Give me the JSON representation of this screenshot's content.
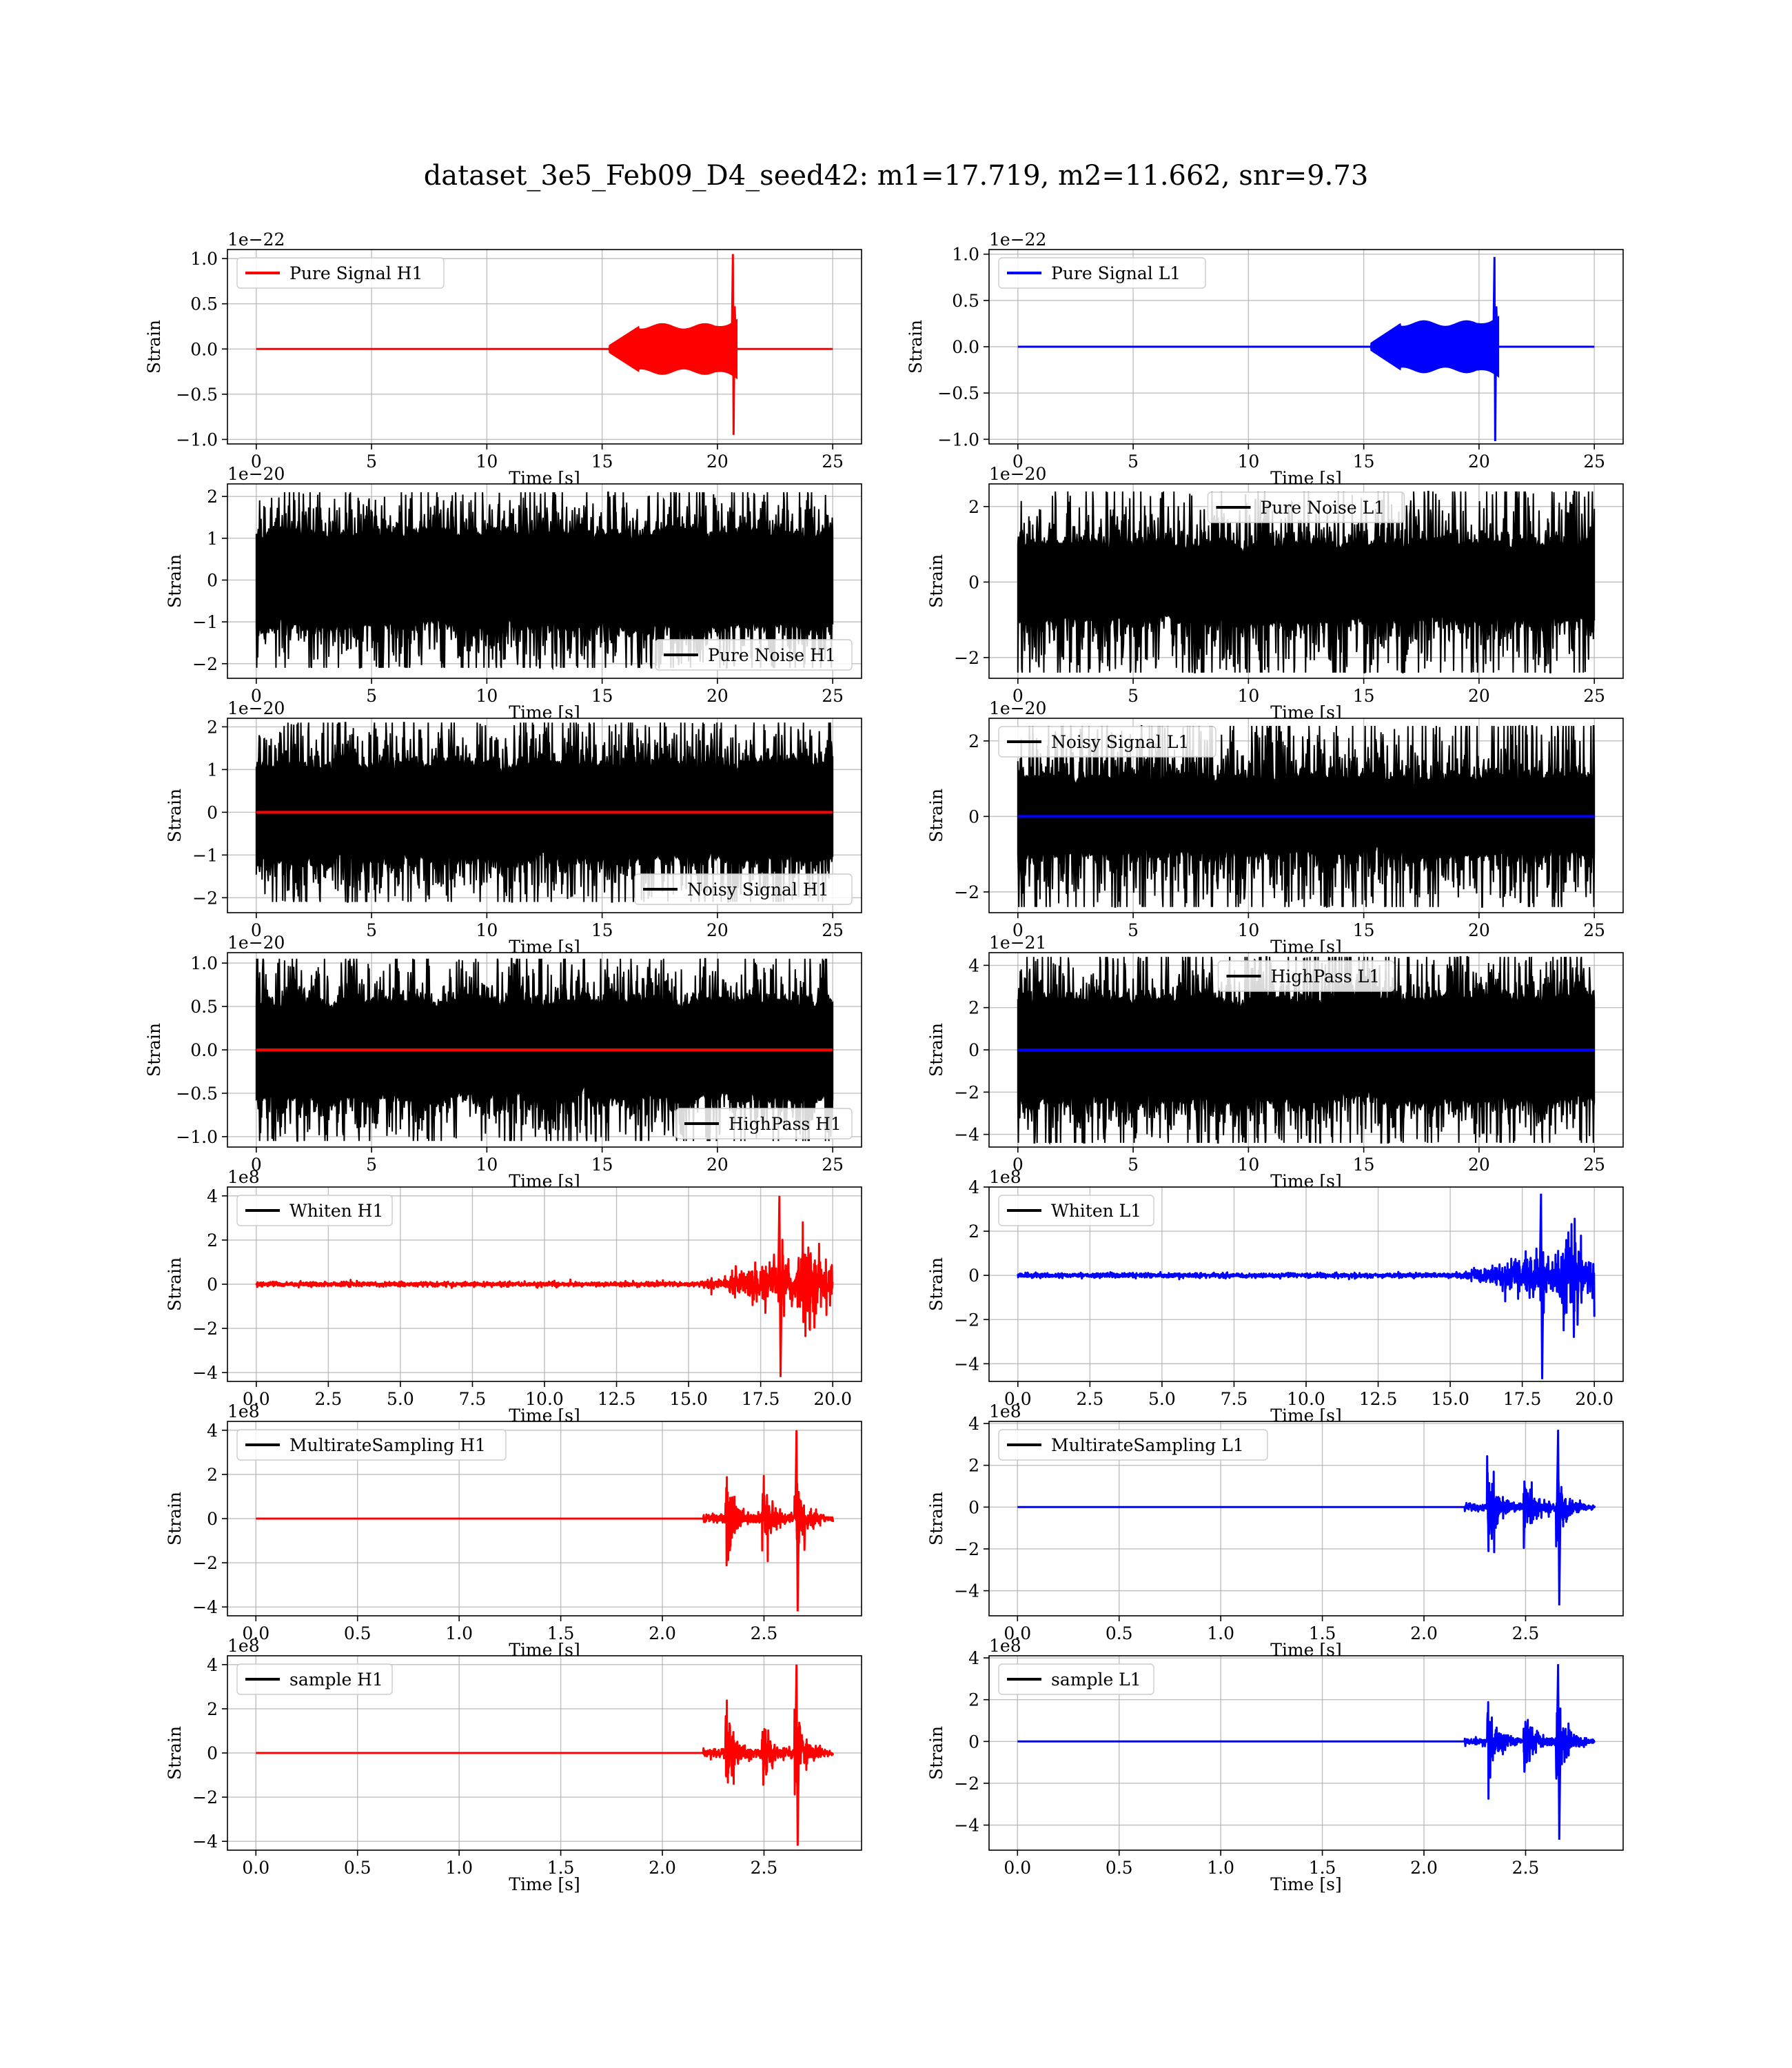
{
  "figure": {
    "title": "dataset_3e5_Feb09_D4_seed42: m1=17.719, m2=11.662, snr=9.73"
  },
  "colors": {
    "h1_signal": "#ff0000",
    "l1_signal": "#0000ff",
    "noise": "#000000",
    "grid": "#b0b0b0",
    "frame": "#000000",
    "background": "#ffffff"
  },
  "chart_data": [
    {
      "id": "pure-signal-h1",
      "type": "line",
      "xlabel": "Time [s]",
      "ylabel": "Strain",
      "offset_label": "1e−22",
      "xlim": [
        -1.25,
        26.25
      ],
      "ylim": [
        -1.05,
        1.1
      ],
      "xticks": [
        0,
        5,
        10,
        15,
        20,
        25
      ],
      "xtick_labels": [
        "0",
        "5",
        "10",
        "15",
        "20",
        "25"
      ],
      "yticks": [
        -1.0,
        -0.5,
        0.0,
        0.5,
        1.0
      ],
      "ytick_labels": [
        "−1.0",
        "−0.5",
        "0.0",
        "0.5",
        "1.0"
      ],
      "grid": true,
      "legend_placement": "upper left",
      "series": [
        {
          "name": "Pure Signal H1",
          "color": "#ff0000",
          "kind": "chirp",
          "duration": 25,
          "merger": 20.7,
          "onset": 15.3,
          "envelope": 0.25,
          "peak": 1.05,
          "trough": -0.95
        }
      ]
    },
    {
      "id": "pure-signal-l1",
      "type": "line",
      "xlabel": "Time [s]",
      "ylabel": "Strain",
      "offset_label": "1e−22",
      "xlim": [
        -1.25,
        26.25
      ],
      "ylim": [
        -1.05,
        1.05
      ],
      "xticks": [
        0,
        5,
        10,
        15,
        20,
        25
      ],
      "xtick_labels": [
        "0",
        "5",
        "10",
        "15",
        "20",
        "25"
      ],
      "yticks": [
        -1.0,
        -0.5,
        0.0,
        0.5,
        1.0
      ],
      "ytick_labels": [
        "−1.0",
        "−0.5",
        "0.0",
        "0.5",
        "1.0"
      ],
      "grid": true,
      "legend_placement": "upper left",
      "series": [
        {
          "name": "Pure Signal L1",
          "color": "#0000ff",
          "kind": "chirp",
          "duration": 25,
          "merger": 20.7,
          "onset": 15.3,
          "envelope": 0.25,
          "peak": 0.97,
          "trough": -1.02
        }
      ]
    },
    {
      "id": "pure-noise-h1",
      "type": "line",
      "xlabel": "Time [s]",
      "ylabel": "Strain",
      "offset_label": "1e−20",
      "xlim": [
        -1.25,
        26.25
      ],
      "ylim": [
        -2.35,
        2.3
      ],
      "xticks": [
        0,
        5,
        10,
        15,
        20,
        25
      ],
      "xtick_labels": [
        "0",
        "5",
        "10",
        "15",
        "20",
        "25"
      ],
      "yticks": [
        -2,
        -1,
        0,
        1,
        2
      ],
      "ytick_labels": [
        "−2",
        "−1",
        "0",
        "1",
        "2"
      ],
      "grid": true,
      "legend_placement": "lower right",
      "series": [
        {
          "name": "Pure Noise H1",
          "color": "#000000",
          "kind": "noise",
          "duration": 25,
          "band": 1.1,
          "peak": 2.1
        }
      ]
    },
    {
      "id": "pure-noise-l1",
      "type": "line",
      "xlabel": "Time [s]",
      "ylabel": "Strain",
      "offset_label": "1e−20",
      "xlim": [
        -1.25,
        26.25
      ],
      "ylim": [
        -2.55,
        2.6
      ],
      "xticks": [
        0,
        5,
        10,
        15,
        20,
        25
      ],
      "xtick_labels": [
        "0",
        "5",
        "10",
        "15",
        "20",
        "25"
      ],
      "yticks": [
        -2,
        0,
        2
      ],
      "ytick_labels": [
        "−2",
        "0",
        "2"
      ],
      "grid": true,
      "legend_placement": "upper center",
      "series": [
        {
          "name": "Pure Noise L1",
          "color": "#000000",
          "kind": "noise",
          "duration": 25,
          "band": 1.0,
          "peak": 2.4
        }
      ]
    },
    {
      "id": "noisy-signal-h1",
      "type": "line",
      "xlabel": "Time [s]",
      "ylabel": "Strain",
      "offset_label": "1e−20",
      "xlim": [
        -1.25,
        26.25
      ],
      "ylim": [
        -2.35,
        2.2
      ],
      "xticks": [
        0,
        5,
        10,
        15,
        20,
        25
      ],
      "xtick_labels": [
        "0",
        "5",
        "10",
        "15",
        "20",
        "25"
      ],
      "yticks": [
        -2,
        -1,
        0,
        1,
        2
      ],
      "ytick_labels": [
        "−2",
        "−1",
        "0",
        "1",
        "2"
      ],
      "grid": true,
      "legend_placement": "lower right",
      "series": [
        {
          "name": "Noisy Signal H1",
          "color": "#000000",
          "kind": "noise",
          "duration": 25,
          "band": 1.1,
          "peak": 2.1
        },
        {
          "color": "#ff0000",
          "kind": "flat",
          "duration": 25
        }
      ]
    },
    {
      "id": "noisy-signal-l1",
      "type": "line",
      "xlabel": "Time [s]",
      "ylabel": "Strain",
      "offset_label": "1e−20",
      "xlim": [
        -1.25,
        26.25
      ],
      "ylim": [
        -2.55,
        2.6
      ],
      "xticks": [
        0,
        5,
        10,
        15,
        20,
        25
      ],
      "xtick_labels": [
        "0",
        "5",
        "10",
        "15",
        "20",
        "25"
      ],
      "yticks": [
        -2,
        0,
        2
      ],
      "ytick_labels": [
        "−2",
        "0",
        "2"
      ],
      "grid": true,
      "legend_placement": "upper left",
      "series": [
        {
          "name": "Noisy Signal L1",
          "color": "#000000",
          "kind": "noise",
          "duration": 25,
          "band": 1.0,
          "peak": 2.4
        },
        {
          "color": "#0000ff",
          "kind": "flat",
          "duration": 25
        }
      ]
    },
    {
      "id": "highpass-h1",
      "type": "line",
      "xlabel": "Time [s]",
      "ylabel": "Strain",
      "offset_label": "1e−20",
      "xlim": [
        -1.25,
        26.25
      ],
      "ylim": [
        -1.12,
        1.12
      ],
      "xticks": [
        0,
        5,
        10,
        15,
        20,
        25
      ],
      "xtick_labels": [
        "0",
        "5",
        "10",
        "15",
        "20",
        "25"
      ],
      "yticks": [
        -1.0,
        -0.5,
        0.0,
        0.5,
        1.0
      ],
      "ytick_labels": [
        "−1.0",
        "−0.5",
        "0.0",
        "0.5",
        "1.0"
      ],
      "grid": true,
      "legend_placement": "lower right",
      "series": [
        {
          "name": "HighPass H1",
          "color": "#000000",
          "kind": "noise",
          "duration": 25,
          "band": 0.55,
          "peak": 1.05
        },
        {
          "color": "#ff0000",
          "kind": "flat",
          "duration": 25
        }
      ]
    },
    {
      "id": "highpass-l1",
      "type": "line",
      "xlabel": "Time [s]",
      "ylabel": "Strain",
      "offset_label": "1e−21",
      "xlim": [
        -1.25,
        26.25
      ],
      "ylim": [
        -4.6,
        4.6
      ],
      "xticks": [
        0,
        5,
        10,
        15,
        20,
        25
      ],
      "xtick_labels": [
        "0",
        "5",
        "10",
        "15",
        "20",
        "25"
      ],
      "yticks": [
        -4,
        -2,
        0,
        2,
        4
      ],
      "ytick_labels": [
        "−4",
        "−2",
        "0",
        "2",
        "4"
      ],
      "grid": true,
      "legend_placement": "upper center",
      "series": [
        {
          "name": "HighPass L1",
          "color": "#000000",
          "kind": "noise",
          "duration": 25,
          "band": 2.4,
          "peak": 4.4
        },
        {
          "color": "#0000ff",
          "kind": "flat",
          "duration": 25
        }
      ]
    },
    {
      "id": "whiten-h1",
      "type": "line",
      "xlabel": "Time [s]",
      "ylabel": "Strain",
      "offset_label": "1e8",
      "xlim": [
        -1.0,
        21.0
      ],
      "ylim": [
        -4.4,
        4.4
      ],
      "xticks": [
        0,
        2.5,
        5,
        7.5,
        10,
        12.5,
        15,
        17.5,
        20
      ],
      "xtick_labels": [
        "0.0",
        "2.5",
        "5.0",
        "7.5",
        "10.0",
        "12.5",
        "15.0",
        "17.5",
        "20.0"
      ],
      "yticks": [
        -4,
        -2,
        0,
        2,
        4
      ],
      "ytick_labels": [
        "−4",
        "−2",
        "0",
        "2",
        "4"
      ],
      "grid": true,
      "legend_placement": "upper left",
      "series": [
        {
          "name": "Whiten H1",
          "color": "#ff0000",
          "kind": "whiten",
          "duration": 20,
          "peak": 4.0,
          "trough": -4.2,
          "spike_at": 18.15
        }
      ]
    },
    {
      "id": "whiten-l1",
      "type": "line",
      "xlabel": "Time [s]",
      "ylabel": "Strain",
      "offset_label": "1e8",
      "xlim": [
        -1.0,
        21.0
      ],
      "ylim": [
        -4.8,
        4.0
      ],
      "xticks": [
        0,
        2.5,
        5,
        7.5,
        10,
        12.5,
        15,
        17.5,
        20
      ],
      "xtick_labels": [
        "0.0",
        "2.5",
        "5.0",
        "7.5",
        "10.0",
        "12.5",
        "15.0",
        "17.5",
        "20.0"
      ],
      "yticks": [
        -4,
        -2,
        0,
        2,
        4
      ],
      "ytick_labels": [
        "−4",
        "−2",
        "0",
        "2",
        "4"
      ],
      "grid": true,
      "legend_placement": "upper left",
      "series": [
        {
          "name": "Whiten L1",
          "color": "#0000ff",
          "kind": "whiten",
          "duration": 20,
          "peak": 3.7,
          "trough": -4.7,
          "spike_at": 18.15
        }
      ]
    },
    {
      "id": "multirate-h1",
      "type": "line",
      "xlabel": "Time [s]",
      "ylabel": "Strain",
      "offset_label": "1e8",
      "xlim": [
        -0.14,
        2.98
      ],
      "ylim": [
        -4.4,
        4.4
      ],
      "xticks": [
        0,
        0.5,
        1.0,
        1.5,
        2.0,
        2.5
      ],
      "xtick_labels": [
        "0.0",
        "0.5",
        "1.0",
        "1.5",
        "2.0",
        "2.5"
      ],
      "yticks": [
        -4,
        -2,
        0,
        2,
        4
      ],
      "ytick_labels": [
        "−4",
        "−2",
        "0",
        "2",
        "4"
      ],
      "grid": true,
      "legend_placement": "upper left",
      "series": [
        {
          "name": "MultirateSampling H1",
          "color": "#ff0000",
          "kind": "multirate",
          "duration": 2.84,
          "peak": 4.0,
          "trough": -4.2,
          "spike_at": 2.66
        }
      ]
    },
    {
      "id": "multirate-l1",
      "type": "line",
      "xlabel": "Time [s]",
      "ylabel": "Strain",
      "offset_label": "1e8",
      "xlim": [
        -0.14,
        2.98
      ],
      "ylim": [
        -5.2,
        4.1
      ],
      "xticks": [
        0,
        0.5,
        1.0,
        1.5,
        2.0,
        2.5
      ],
      "xtick_labels": [
        "0.0",
        "0.5",
        "1.0",
        "1.5",
        "2.0",
        "2.5"
      ],
      "yticks": [
        -4,
        -2,
        0,
        2,
        4
      ],
      "ytick_labels": [
        "−4",
        "−2",
        "0",
        "2",
        "4"
      ],
      "grid": true,
      "legend_placement": "upper left",
      "series": [
        {
          "name": "MultirateSampling L1",
          "color": "#0000ff",
          "kind": "multirate",
          "duration": 2.84,
          "peak": 3.7,
          "trough": -4.7,
          "spike_at": 2.66
        }
      ]
    },
    {
      "id": "sample-h1",
      "type": "line",
      "xlabel": "Time [s]",
      "ylabel": "Strain",
      "offset_label": "1e8",
      "xlim": [
        -0.14,
        2.98
      ],
      "ylim": [
        -4.4,
        4.4
      ],
      "xticks": [
        0,
        0.5,
        1.0,
        1.5,
        2.0,
        2.5
      ],
      "xtick_labels": [
        "0.0",
        "0.5",
        "1.0",
        "1.5",
        "2.0",
        "2.5"
      ],
      "yticks": [
        -4,
        -2,
        0,
        2,
        4
      ],
      "ytick_labels": [
        "−4",
        "−2",
        "0",
        "2",
        "4"
      ],
      "grid": true,
      "legend_placement": "upper left",
      "series": [
        {
          "name": "sample H1",
          "color": "#ff0000",
          "kind": "multirate",
          "duration": 2.84,
          "peak": 4.0,
          "trough": -4.2,
          "spike_at": 2.66
        }
      ]
    },
    {
      "id": "sample-l1",
      "type": "line",
      "xlabel": "Time [s]",
      "ylabel": "Strain",
      "offset_label": "1e8",
      "xlim": [
        -0.14,
        2.98
      ],
      "ylim": [
        -5.2,
        4.1
      ],
      "xticks": [
        0,
        0.5,
        1.0,
        1.5,
        2.0,
        2.5
      ],
      "xtick_labels": [
        "0.0",
        "0.5",
        "1.0",
        "1.5",
        "2.0",
        "2.5"
      ],
      "yticks": [
        -4,
        -2,
        0,
        2,
        4
      ],
      "ytick_labels": [
        "−4",
        "−2",
        "0",
        "2",
        "4"
      ],
      "grid": true,
      "legend_placement": "upper left",
      "series": [
        {
          "name": "sample L1",
          "color": "#0000ff",
          "kind": "multirate",
          "duration": 2.84,
          "peak": 3.7,
          "trough": -4.7,
          "spike_at": 2.66
        }
      ]
    }
  ]
}
